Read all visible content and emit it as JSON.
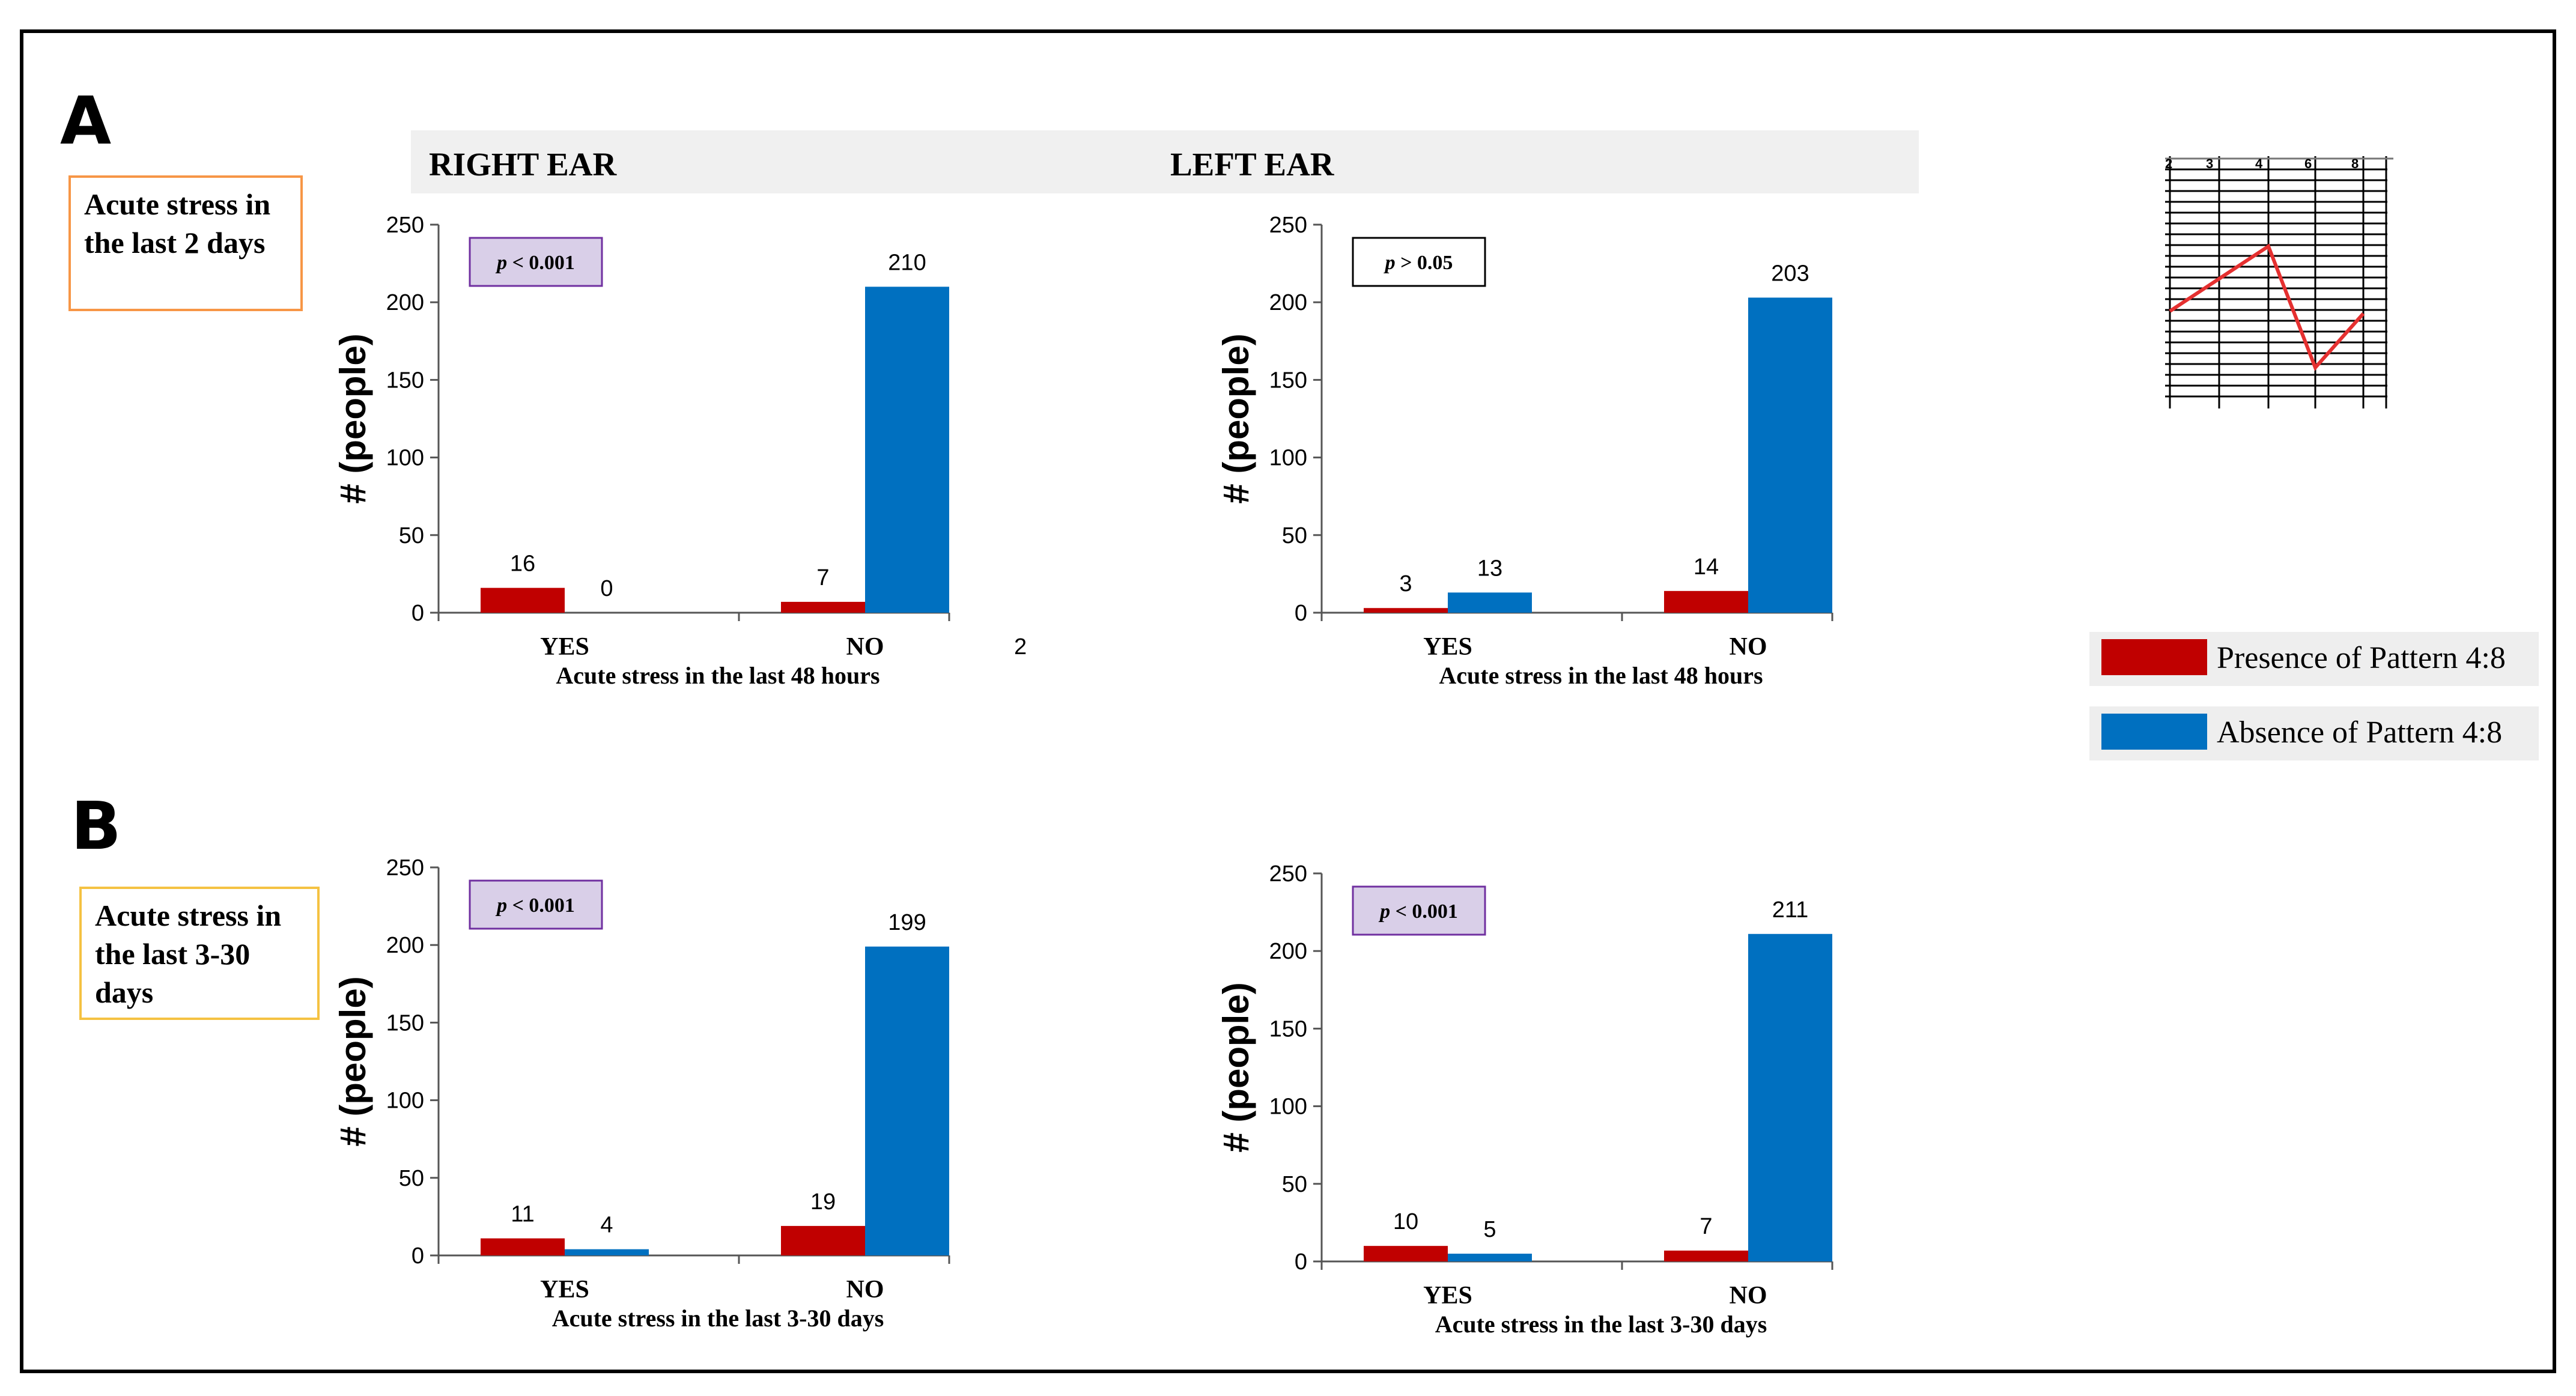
{
  "panels": {
    "A": {
      "letter": "A",
      "condition": "Acute stress in  the last 2 days"
    },
    "B": {
      "letter": "B",
      "condition": "Acute stress in the last 3-30 days"
    }
  },
  "headers": {
    "right": "RIGHT  EAR",
    "left": "LEFT EAR"
  },
  "legend": {
    "presence": "Presence of Pattern 4:8",
    "absence": "Absence of Pattern   4:8"
  },
  "colors": {
    "presence": "#c00000",
    "absence": "#0070c0",
    "pbox_highlight": "#d9cfe8",
    "pbox_border": "#7030a0",
    "box_orange": "#f79646",
    "box_yellow": "#f5c242"
  },
  "audiogram": {
    "header": [
      "2",
      "3",
      "4",
      "6",
      "8"
    ]
  },
  "stray_text": "2",
  "chart_data": [
    {
      "type": "bar",
      "id": "A-right",
      "ylabel": "# (people)",
      "xlabel": "Acute stress in the last 48 hours",
      "categories": [
        "YES",
        "NO"
      ],
      "ylim": [
        0,
        250
      ],
      "yticks": [
        0,
        50,
        100,
        150,
        200,
        250
      ],
      "p_value": "p < 0.001",
      "p_highlight": true,
      "series": [
        {
          "name": "Presence of Pattern 4:8",
          "values": [
            16,
            7
          ]
        },
        {
          "name": "Absence of Pattern 4:8",
          "values": [
            0,
            210
          ]
        }
      ]
    },
    {
      "type": "bar",
      "id": "A-left",
      "ylabel": "# (people)",
      "xlabel": "Acute stress in the last 48 hours",
      "categories": [
        "YES",
        "NO"
      ],
      "ylim": [
        0,
        250
      ],
      "yticks": [
        0,
        50,
        100,
        150,
        200,
        250
      ],
      "p_value": "p > 0.05",
      "p_highlight": false,
      "series": [
        {
          "name": "Presence of Pattern 4:8",
          "values": [
            3,
            14
          ]
        },
        {
          "name": "Absence of Pattern 4:8",
          "values": [
            13,
            203
          ]
        }
      ]
    },
    {
      "type": "bar",
      "id": "B-right",
      "ylabel": "# (people)",
      "xlabel": "Acute stress in the last 3-30 days",
      "categories": [
        "YES",
        "NO"
      ],
      "ylim": [
        0,
        250
      ],
      "yticks": [
        0,
        50,
        100,
        150,
        200,
        250
      ],
      "p_value": "p < 0.001",
      "p_highlight": true,
      "series": [
        {
          "name": "Presence of Pattern 4:8",
          "values": [
            11,
            19
          ]
        },
        {
          "name": "Absence of Pattern 4:8",
          "values": [
            4,
            199
          ]
        }
      ]
    },
    {
      "type": "bar",
      "id": "B-left",
      "ylabel": "# (people)",
      "xlabel": "Acute stress in the last 3-30 days",
      "categories": [
        "YES",
        "NO"
      ],
      "ylim": [
        0,
        250
      ],
      "yticks": [
        0,
        50,
        100,
        150,
        200,
        250
      ],
      "p_value": "p < 0.001",
      "p_highlight": true,
      "series": [
        {
          "name": "Presence of Pattern 4:8",
          "values": [
            10,
            7
          ]
        },
        {
          "name": "Absence of Pattern 4:8",
          "values": [
            5,
            211
          ]
        }
      ]
    }
  ]
}
